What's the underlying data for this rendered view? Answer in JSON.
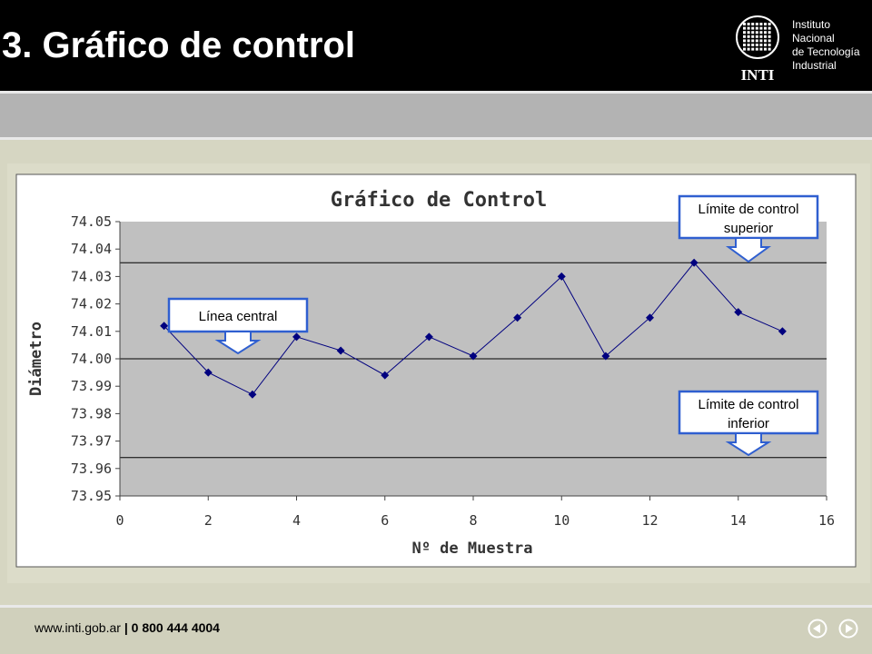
{
  "slide": {
    "title": "3. Gráfico de control"
  },
  "logo": {
    "acronym": "INTI",
    "lines": [
      "Instituto",
      "Nacional",
      "de Tecnología",
      "Industrial"
    ]
  },
  "footer": {
    "url": "www.inti.gob.ar",
    "separator": " | ",
    "phone": "0 800 444 4004"
  },
  "nav": {
    "prev_icon": "previous-arrow-icon",
    "next_icon": "next-arrow-icon"
  },
  "callouts": {
    "ucl": [
      "Límite de control",
      "superior"
    ],
    "center": [
      "Línea central"
    ],
    "lcl": [
      "Límite de control",
      "inferior"
    ]
  },
  "colors": {
    "header_bg": "#000000",
    "plot_bg": "#c0c0c0",
    "series": "#00007f",
    "callout_border": "#2f5fd0"
  },
  "chart_data": {
    "type": "line",
    "title": "Gráfico de Control",
    "xlabel": "Nº de Muestra",
    "ylabel": "Diámetro",
    "xlim": [
      0,
      16
    ],
    "ylim": [
      73.95,
      74.05
    ],
    "xticks": [
      0,
      2,
      4,
      6,
      8,
      10,
      12,
      14,
      16
    ],
    "yticks": [
      74.05,
      74.04,
      74.03,
      74.02,
      74.01,
      74.0,
      73.99,
      73.98,
      73.97,
      73.96,
      73.95
    ],
    "ytick_labels": [
      "74.05",
      "74.04",
      "74.03",
      "74.02",
      "74.01",
      "74.00",
      "73.99",
      "73.98",
      "73.97",
      "73.96",
      "73.95"
    ],
    "grid": false,
    "reference_lines": {
      "ucl": 74.035,
      "center": 74.0,
      "lcl": 73.964
    },
    "series": [
      {
        "x": [
          1,
          2,
          3,
          4,
          5,
          6,
          7,
          8,
          9,
          10,
          11,
          12,
          13,
          14,
          15
        ],
        "y": [
          74.012,
          73.995,
          73.987,
          74.008,
          74.003,
          73.994,
          74.008,
          74.001,
          74.015,
          74.03,
          74.001,
          74.015,
          74.035,
          74.017,
          74.01
        ]
      }
    ]
  }
}
